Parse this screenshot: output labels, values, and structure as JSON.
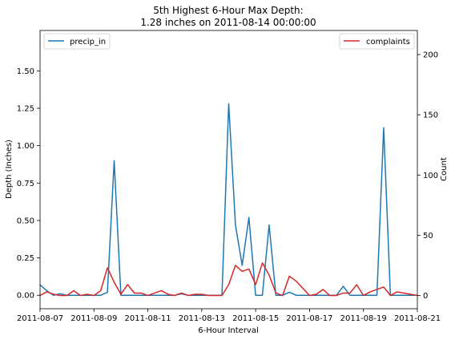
{
  "chart_data": {
    "type": "line",
    "title_lines": [
      "5th Highest 6-Hour Max Depth:",
      "1.28 inches on 2011-08-14 00:00:00"
    ],
    "xlabel": "6-Hour Interval",
    "ylabel_left": "Depth (Inches)",
    "ylabel_right": "Count",
    "x_range": [
      "2011-08-07",
      "2011-08-21"
    ],
    "x_tick_labels": [
      "2011-08-07",
      "2011-08-09",
      "2011-08-11",
      "2011-08-13",
      "2011-08-15",
      "2011-08-17",
      "2011-08-19",
      "2011-08-21"
    ],
    "y_left_range": [
      -0.09,
      1.77
    ],
    "y_left_ticks": [
      "0.00",
      "0.25",
      "0.50",
      "0.75",
      "1.00",
      "1.25",
      "1.50"
    ],
    "y_right_range": [
      -11,
      220
    ],
    "y_right_ticks": [
      "0",
      "50",
      "100",
      "150",
      "200"
    ],
    "grid": false,
    "series": [
      {
        "name": "precip_in",
        "axis": "left",
        "color": "#1f77b4",
        "legend_position": "top-left",
        "points": [
          [
            "2011-08-07 00:00",
            0.07
          ],
          [
            "2011-08-07 06:00",
            0.03
          ],
          [
            "2011-08-07 12:00",
            0.0
          ],
          [
            "2011-08-07 18:00",
            0.01
          ],
          [
            "2011-08-08 00:00",
            0.0
          ],
          [
            "2011-08-08 06:00",
            0.0
          ],
          [
            "2011-08-08 12:00",
            0.0
          ],
          [
            "2011-08-08 18:00",
            0.0
          ],
          [
            "2011-08-09 00:00",
            0.0
          ],
          [
            "2011-08-09 06:00",
            0.0
          ],
          [
            "2011-08-09 12:00",
            0.02
          ],
          [
            "2011-08-09 18:00",
            0.9
          ],
          [
            "2011-08-10 00:00",
            0.0
          ],
          [
            "2011-08-10 06:00",
            0.0
          ],
          [
            "2011-08-10 12:00",
            0.0
          ],
          [
            "2011-08-10 18:00",
            0.0
          ],
          [
            "2011-08-11 00:00",
            0.0
          ],
          [
            "2011-08-11 06:00",
            0.0
          ],
          [
            "2011-08-11 12:00",
            0.0
          ],
          [
            "2011-08-11 18:00",
            0.0
          ],
          [
            "2011-08-12 00:00",
            0.0
          ],
          [
            "2011-08-12 06:00",
            0.01
          ],
          [
            "2011-08-12 12:00",
            0.0
          ],
          [
            "2011-08-12 18:00",
            0.0
          ],
          [
            "2011-08-13 00:00",
            0.0
          ],
          [
            "2011-08-13 06:00",
            0.0
          ],
          [
            "2011-08-13 12:00",
            0.0
          ],
          [
            "2011-08-13 18:00",
            0.0
          ],
          [
            "2011-08-14 00:00",
            1.28
          ],
          [
            "2011-08-14 06:00",
            0.47
          ],
          [
            "2011-08-14 12:00",
            0.2
          ],
          [
            "2011-08-14 18:00",
            0.52
          ],
          [
            "2011-08-15 00:00",
            0.0
          ],
          [
            "2011-08-15 06:00",
            0.0
          ],
          [
            "2011-08-15 12:00",
            0.47
          ],
          [
            "2011-08-15 18:00",
            0.0
          ],
          [
            "2011-08-16 00:00",
            0.0
          ],
          [
            "2011-08-16 06:00",
            0.02
          ],
          [
            "2011-08-16 12:00",
            0.0
          ],
          [
            "2011-08-16 18:00",
            0.0
          ],
          [
            "2011-08-17 00:00",
            0.0
          ],
          [
            "2011-08-17 06:00",
            0.0
          ],
          [
            "2011-08-17 12:00",
            0.0
          ],
          [
            "2011-08-17 18:00",
            0.0
          ],
          [
            "2011-08-18 00:00",
            0.0
          ],
          [
            "2011-08-18 06:00",
            0.06
          ],
          [
            "2011-08-18 12:00",
            0.0
          ],
          [
            "2011-08-18 18:00",
            0.0
          ],
          [
            "2011-08-19 00:00",
            0.0
          ],
          [
            "2011-08-19 06:00",
            0.0
          ],
          [
            "2011-08-19 12:00",
            0.0
          ],
          [
            "2011-08-19 18:00",
            1.12
          ],
          [
            "2011-08-20 00:00",
            0.0
          ],
          [
            "2011-08-20 06:00",
            0.0
          ],
          [
            "2011-08-20 12:00",
            0.0
          ],
          [
            "2011-08-20 18:00",
            0.0
          ],
          [
            "2011-08-21 00:00",
            0.0
          ]
        ]
      },
      {
        "name": "complaints",
        "axis": "right",
        "color": "#d62728",
        "legend_position": "top-right",
        "points": [
          [
            "2011-08-07 00:00",
            0
          ],
          [
            "2011-08-07 06:00",
            3
          ],
          [
            "2011-08-07 12:00",
            1
          ],
          [
            "2011-08-07 18:00",
            0
          ],
          [
            "2011-08-08 00:00",
            0
          ],
          [
            "2011-08-08 06:00",
            4
          ],
          [
            "2011-08-08 12:00",
            0
          ],
          [
            "2011-08-08 18:00",
            1
          ],
          [
            "2011-08-09 00:00",
            0
          ],
          [
            "2011-08-09 06:00",
            4
          ],
          [
            "2011-08-09 12:00",
            23
          ],
          [
            "2011-08-09 18:00",
            11
          ],
          [
            "2011-08-10 00:00",
            1
          ],
          [
            "2011-08-10 06:00",
            9
          ],
          [
            "2011-08-10 12:00",
            2
          ],
          [
            "2011-08-10 18:00",
            2
          ],
          [
            "2011-08-11 00:00",
            0
          ],
          [
            "2011-08-11 06:00",
            2
          ],
          [
            "2011-08-11 12:00",
            4
          ],
          [
            "2011-08-11 18:00",
            1
          ],
          [
            "2011-08-12 00:00",
            0
          ],
          [
            "2011-08-12 06:00",
            2
          ],
          [
            "2011-08-12 12:00",
            0
          ],
          [
            "2011-08-12 18:00",
            1
          ],
          [
            "2011-08-13 00:00",
            1
          ],
          [
            "2011-08-13 06:00",
            0
          ],
          [
            "2011-08-13 12:00",
            0
          ],
          [
            "2011-08-13 18:00",
            0
          ],
          [
            "2011-08-14 00:00",
            9
          ],
          [
            "2011-08-14 06:00",
            25
          ],
          [
            "2011-08-14 12:00",
            20
          ],
          [
            "2011-08-14 18:00",
            22
          ],
          [
            "2011-08-15 00:00",
            9
          ],
          [
            "2011-08-15 06:00",
            27
          ],
          [
            "2011-08-15 12:00",
            17
          ],
          [
            "2011-08-15 18:00",
            2
          ],
          [
            "2011-08-16 00:00",
            0
          ],
          [
            "2011-08-16 06:00",
            16
          ],
          [
            "2011-08-16 12:00",
            12
          ],
          [
            "2011-08-16 18:00",
            6
          ],
          [
            "2011-08-17 00:00",
            0
          ],
          [
            "2011-08-17 06:00",
            1
          ],
          [
            "2011-08-17 12:00",
            5
          ],
          [
            "2011-08-17 18:00",
            0
          ],
          [
            "2011-08-18 00:00",
            0
          ],
          [
            "2011-08-18 06:00",
            2
          ],
          [
            "2011-08-18 12:00",
            2
          ],
          [
            "2011-08-18 18:00",
            9
          ],
          [
            "2011-08-19 00:00",
            0
          ],
          [
            "2011-08-19 06:00",
            3
          ],
          [
            "2011-08-19 12:00",
            5
          ],
          [
            "2011-08-19 18:00",
            7
          ],
          [
            "2011-08-20 00:00",
            0
          ],
          [
            "2011-08-20 06:00",
            3
          ],
          [
            "2011-08-20 12:00",
            2
          ],
          [
            "2011-08-20 18:00",
            1
          ],
          [
            "2011-08-21 00:00",
            0
          ]
        ]
      }
    ]
  }
}
